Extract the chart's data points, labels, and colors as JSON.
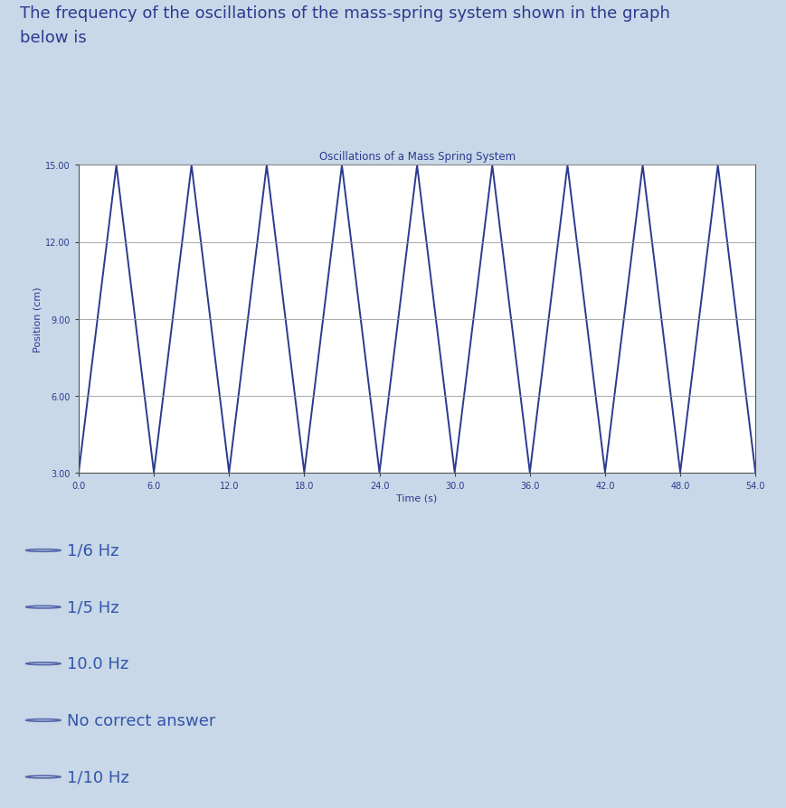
{
  "title": "Oscillations of a Mass Spring System",
  "xlabel": "Time (s)",
  "ylabel": "Position (cm)",
  "x_min": 0.0,
  "x_max": 54.0,
  "y_min": 3.0,
  "y_max": 15.0,
  "y_ticks": [
    3.0,
    6.0,
    9.0,
    12.0,
    15.0
  ],
  "x_ticks": [
    0.0,
    6.0,
    12.0,
    18.0,
    24.0,
    30.0,
    36.0,
    42.0,
    48.0,
    54.0
  ],
  "amplitude": 6.0,
  "midline": 9.0,
  "period": 6.0,
  "line_color": "#2B3A8F",
  "grid_color": "#999999",
  "bg_color": "#FFFFFF",
  "outer_bg": "#C8D8E8",
  "question_text": "The frequency of the oscillations of the mass-spring system shown in the graph\nbelow is",
  "choices": [
    "1/6 Hz",
    "1/5 Hz",
    "10.0 Hz",
    "No correct answer",
    "1/10 Hz"
  ],
  "title_fontsize": 8.5,
  "axis_label_fontsize": 8,
  "tick_fontsize": 7,
  "question_fontsize": 13,
  "choice_fontsize": 13,
  "divider_color": "#BBBBBB",
  "choice_text_color": "#3355AA",
  "radio_color": "#5566AA"
}
